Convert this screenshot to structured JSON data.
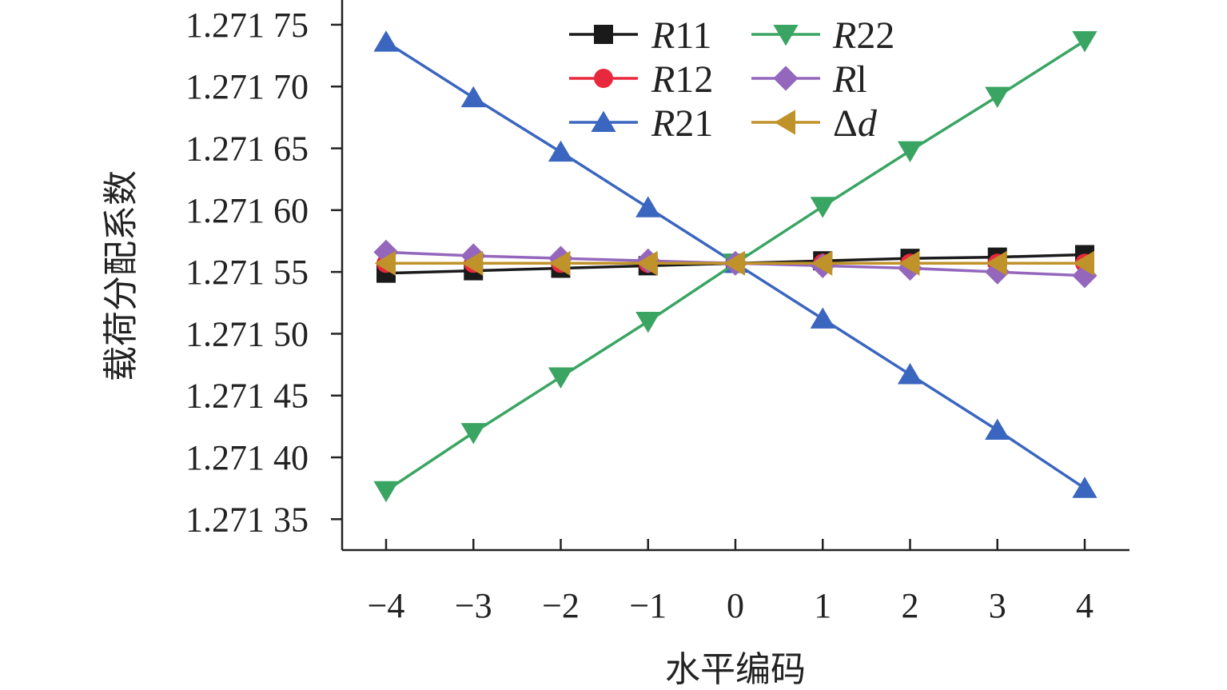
{
  "chart_data": {
    "type": "line",
    "title": "",
    "xlabel": "水平编码",
    "ylabel": "载荷分配系数",
    "x": [
      -4,
      -3,
      -2,
      -1,
      0,
      1,
      2,
      3,
      4
    ],
    "x_tick_labels": [
      "−4",
      "−3",
      "−2",
      "−1",
      "0",
      "1",
      "2",
      "3",
      "4"
    ],
    "xlim": [
      -4.5,
      4.5
    ],
    "ylim": [
      1.271325,
      1.27177
    ],
    "y_ticks": [
      1.27135,
      1.2714,
      1.27145,
      1.2715,
      1.27155,
      1.2716,
      1.27165,
      1.2717,
      1.27175
    ],
    "y_tick_labels": [
      "1.271 35",
      "1.271 40",
      "1.271 45",
      "1.271 50",
      "1.271 55",
      "1.271 60",
      "1.271 65",
      "1.271 70",
      "1.271 75"
    ],
    "grid": false,
    "legend_position": "top-center",
    "series": [
      {
        "name": "R11",
        "italic": "R",
        "rest": "11",
        "color": "#1a1a1a",
        "marker": "square",
        "values": [
          1.271549,
          1.271551,
          1.271553,
          1.271555,
          1.271557,
          1.271559,
          1.271561,
          1.271562,
          1.271564
        ]
      },
      {
        "name": "R12",
        "italic": "R",
        "rest": "12",
        "color": "#e8283c",
        "marker": "circle",
        "values": [
          1.271557,
          1.271557,
          1.271557,
          1.271557,
          1.271557,
          1.271557,
          1.271557,
          1.271557,
          1.271557
        ]
      },
      {
        "name": "R21",
        "italic": "R",
        "rest": "21",
        "color": "#3a66c0",
        "marker": "triangle-up",
        "values": [
          1.271736,
          1.271691,
          1.271647,
          1.271602,
          1.271557,
          1.271512,
          1.271467,
          1.271422,
          1.271375
        ]
      },
      {
        "name": "R22",
        "italic": "R",
        "rest": "22",
        "color": "#3aa563",
        "marker": "triangle-down",
        "values": [
          1.271373,
          1.27142,
          1.271465,
          1.27151,
          1.271557,
          1.271603,
          1.271648,
          1.271692,
          1.271737
        ]
      },
      {
        "name": "Rl",
        "italic": "R",
        "rest": "l",
        "color": "#9467bd",
        "marker": "diamond",
        "values": [
          1.271566,
          1.271563,
          1.271561,
          1.271559,
          1.271557,
          1.271555,
          1.271553,
          1.27155,
          1.271547
        ]
      },
      {
        "name": "Δd",
        "italic": "d",
        "prefix": "Δ",
        "color": "#c0922a",
        "marker": "triangle-left",
        "values": [
          1.271557,
          1.271557,
          1.271557,
          1.271557,
          1.271557,
          1.271557,
          1.271557,
          1.271557,
          1.271557
        ]
      }
    ]
  }
}
